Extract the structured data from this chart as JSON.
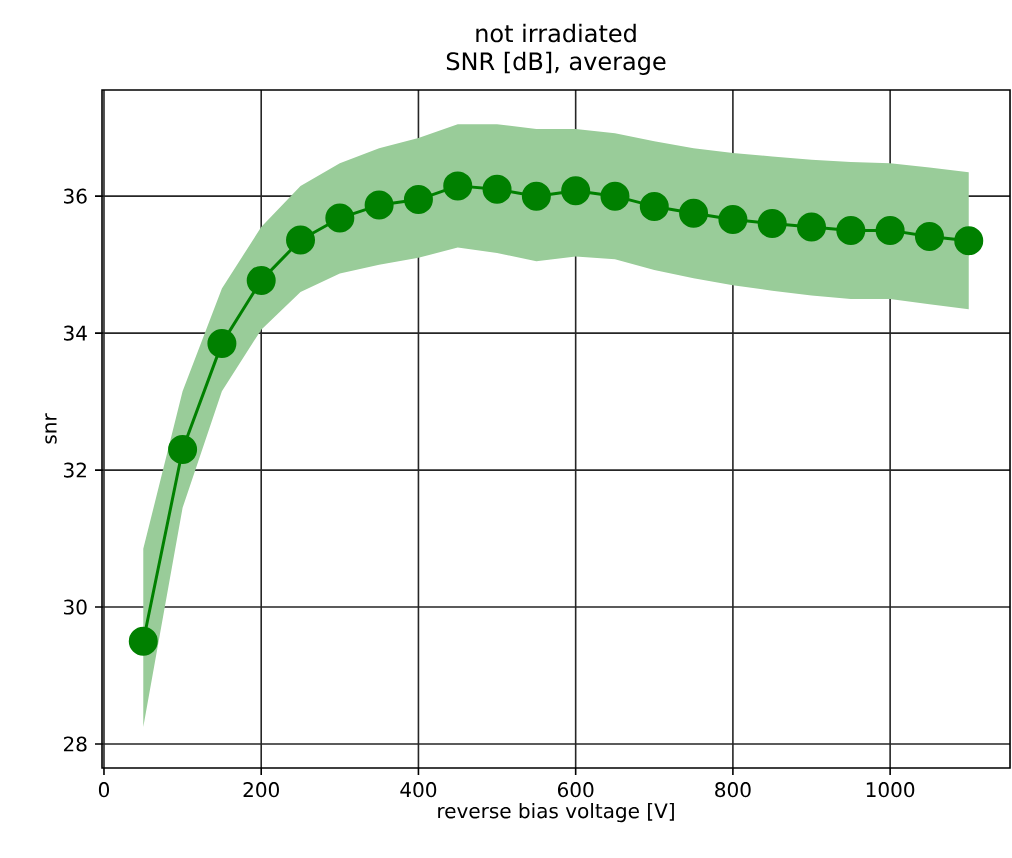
{
  "chart_data": {
    "type": "line",
    "title": "not irradiated",
    "subtitle": "SNR [dB], average",
    "xlabel": "reverse bias voltage [V]",
    "ylabel": "snr",
    "x": [
      50,
      100,
      150,
      200,
      250,
      300,
      350,
      400,
      450,
      500,
      550,
      600,
      650,
      700,
      750,
      800,
      850,
      900,
      950,
      1000,
      1050,
      1100
    ],
    "series": [
      {
        "color": "#008000",
        "values": [
          29.5,
          32.3,
          33.85,
          34.77,
          35.36,
          35.68,
          35.87,
          35.95,
          36.15,
          36.1,
          36.0,
          36.08,
          36.0,
          35.85,
          35.75,
          35.66,
          35.6,
          35.55,
          35.5,
          35.5,
          35.41,
          35.35
        ],
        "lower": [
          28.25,
          31.45,
          33.15,
          34.05,
          34.6,
          34.87,
          35.0,
          35.1,
          35.25,
          35.17,
          35.05,
          35.12,
          35.08,
          34.92,
          34.8,
          34.7,
          34.62,
          34.55,
          34.5,
          34.5,
          34.42,
          34.35
        ],
        "upper": [
          30.85,
          33.15,
          34.65,
          35.55,
          36.15,
          36.48,
          36.7,
          36.85,
          37.05,
          37.05,
          36.98,
          36.98,
          36.92,
          36.8,
          36.7,
          36.63,
          36.58,
          36.53,
          36.5,
          36.48,
          36.42,
          36.35
        ]
      }
    ],
    "xlim": [
      -2.5,
      1152.5
    ],
    "ylim": [
      27.65,
      37.55
    ],
    "xticks": [
      0,
      200,
      400,
      600,
      800,
      1000
    ],
    "yticks": [
      28,
      30,
      32,
      34,
      36
    ],
    "grid": true,
    "marker": "circle",
    "line_style": "solid",
    "legend": false
  }
}
